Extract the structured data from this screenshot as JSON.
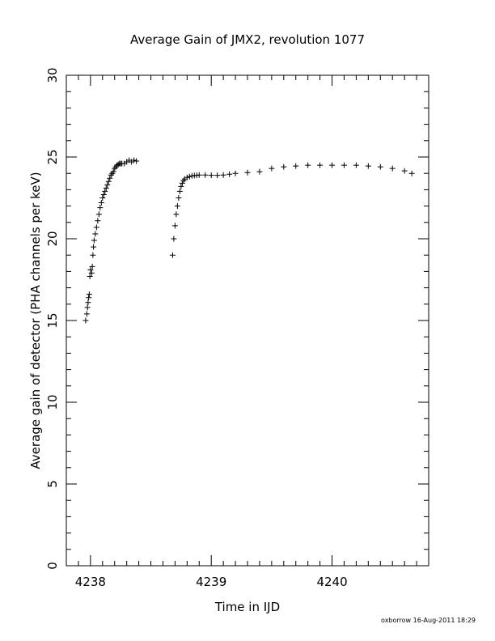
{
  "chart_data": {
    "type": "scatter",
    "title": "Average Gain of JMX2, revolution 1077",
    "xlabel": "Time in IJD",
    "ylabel": "Average gain of detector (PHA channels per keV)",
    "xlim": [
      4237.8,
      4240.8
    ],
    "ylim": [
      0,
      30
    ],
    "xticks": [
      4238,
      4239,
      4240
    ],
    "yticks": [
      0,
      5,
      10,
      15,
      20,
      25,
      30
    ],
    "marker": "plus",
    "grid": false,
    "series": [
      {
        "x": [
          4237.96,
          4237.97,
          4237.975,
          4237.98,
          4237.985,
          4237.99,
          4237.995,
          4238.0,
          4238.01,
          4238.015,
          4238.02,
          4238.025,
          4238.03,
          4238.04,
          4238.05,
          4238.06,
          4238.07,
          4238.08,
          4238.09,
          4238.1,
          4238.11,
          4238.12,
          4238.13,
          4238.14,
          4238.15,
          4238.16,
          4238.17,
          4238.18,
          4238.19,
          4238.2,
          4238.21,
          4238.22,
          4238.23,
          4238.24,
          4238.25,
          4238.26,
          4238.28,
          4238.3,
          4238.32,
          4238.34,
          4238.36,
          4238.38
        ],
        "y": [
          15.0,
          15.4,
          15.8,
          16.1,
          16.4,
          16.6,
          17.7,
          18.1,
          17.9,
          18.3,
          19.0,
          19.5,
          19.9,
          20.3,
          20.7,
          21.1,
          21.5,
          21.9,
          22.2,
          22.5,
          22.7,
          22.9,
          23.1,
          23.3,
          23.5,
          23.7,
          23.9,
          24.0,
          24.1,
          24.3,
          24.4,
          24.5,
          24.55,
          24.6,
          24.6,
          24.6,
          24.6,
          24.7,
          24.8,
          24.7,
          24.8,
          24.75
        ]
      },
      {
        "x": [
          4238.68,
          4238.69,
          4238.7,
          4238.71,
          4238.72,
          4238.73,
          4238.74,
          4238.75,
          4238.76,
          4238.77,
          4238.78,
          4238.8,
          4238.82,
          4238.84,
          4238.86,
          4238.88,
          4238.9,
          4238.95,
          4239.0,
          4239.05,
          4239.1,
          4239.15,
          4239.2,
          4239.3,
          4239.4,
          4239.5,
          4239.6,
          4239.7,
          4239.8,
          4239.9,
          4240.0,
          4240.1,
          4240.2,
          4240.3,
          4240.4,
          4240.5,
          4240.6,
          4240.66
        ],
        "y": [
          19.0,
          20.0,
          20.8,
          21.5,
          22.0,
          22.5,
          22.9,
          23.2,
          23.4,
          23.55,
          23.65,
          23.75,
          23.8,
          23.85,
          23.87,
          23.88,
          23.9,
          23.9,
          23.88,
          23.88,
          23.9,
          23.95,
          24.0,
          24.05,
          24.1,
          24.3,
          24.4,
          24.45,
          24.5,
          24.5,
          24.5,
          24.5,
          24.5,
          24.45,
          24.4,
          24.3,
          24.15,
          24.0
        ]
      }
    ]
  },
  "footer": {
    "credit": "oxborrow 16-Aug-2011 18:29"
  }
}
